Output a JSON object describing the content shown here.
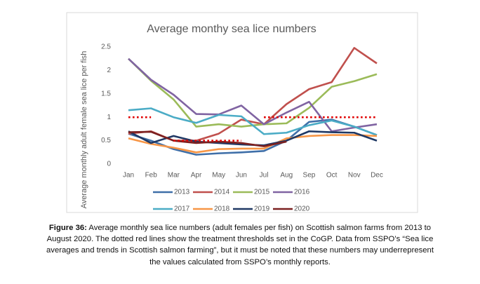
{
  "chart_data": {
    "type": "line",
    "title": "Average monthy sea lice numbers",
    "y_label": "Average monthly adult female sea lice per fish",
    "categories": [
      "Jan",
      "Feb",
      "Mar",
      "Apr",
      "May",
      "Jun",
      "Jul",
      "Aug",
      "Sep",
      "Oct",
      "Nov",
      "Dec"
    ],
    "ylim": [
      0,
      2.5
    ],
    "yticks": [
      0,
      0.5,
      1,
      1.5,
      2,
      2.5
    ],
    "grid": false,
    "series": [
      {
        "name": "2013",
        "color": "#3f6fa8",
        "values": [
          0.65,
          0.5,
          0.32,
          0.2,
          0.23,
          0.25,
          0.28,
          0.5,
          0.9,
          0.95,
          0.8,
          0.62
        ]
      },
      {
        "name": "2014",
        "color": "#c0504d",
        "values": [
          0.65,
          0.7,
          0.5,
          0.5,
          0.65,
          0.95,
          0.85,
          1.28,
          1.6,
          1.75,
          2.48,
          2.15
        ]
      },
      {
        "name": "2015",
        "color": "#9bbb59",
        "values": [
          2.25,
          1.78,
          1.38,
          0.8,
          0.85,
          0.8,
          0.85,
          0.87,
          1.2,
          1.65,
          1.77,
          1.92
        ]
      },
      {
        "name": "2016",
        "color": "#8064a2",
        "values": [
          2.25,
          1.8,
          1.48,
          1.07,
          1.06,
          1.25,
          0.85,
          1.1,
          1.33,
          0.7,
          0.78,
          0.85
        ]
      },
      {
        "name": "2017",
        "color": "#4bacc6",
        "values": [
          1.15,
          1.19,
          1.0,
          0.88,
          1.05,
          1.02,
          0.64,
          0.67,
          0.83,
          0.93,
          0.8,
          0.62
        ]
      },
      {
        "name": "2018",
        "color": "#f79646",
        "values": [
          0.55,
          0.43,
          0.35,
          0.25,
          0.32,
          0.33,
          0.33,
          0.55,
          0.6,
          0.62,
          0.62,
          0.6
        ]
      },
      {
        "name": "2019",
        "color": "#1f3864",
        "values": [
          0.7,
          0.45,
          0.6,
          0.48,
          0.45,
          0.42,
          0.4,
          0.5,
          0.7,
          0.68,
          0.67,
          0.5
        ]
      },
      {
        "name": "2020",
        "color": "#7b2020",
        "values": [
          0.68,
          0.69,
          0.5,
          0.45,
          0.48,
          0.45,
          0.38,
          0.48,
          null,
          null,
          null,
          null
        ]
      }
    ],
    "threshold": {
      "color": "#e00000",
      "values": [
        1,
        1,
        0.5,
        0.5,
        0.5,
        0.5,
        1,
        1,
        1,
        1,
        1,
        1
      ]
    }
  },
  "caption_label": "Figure 36:",
  "caption_lines": [
    " Average monthly sea lice numbers (adult females per fish) on Scottish salmon farms from 2013 to",
    "August 2020. The dotted red lines show the treatment thresholds set in the CoGP. Data from SSPO’s “Sea lice",
    "averages and trends in Scottish salmon farming”, but it must be noted that these numbers may underrepresent",
    "the values calculated from SSPO’s monthly reports."
  ]
}
